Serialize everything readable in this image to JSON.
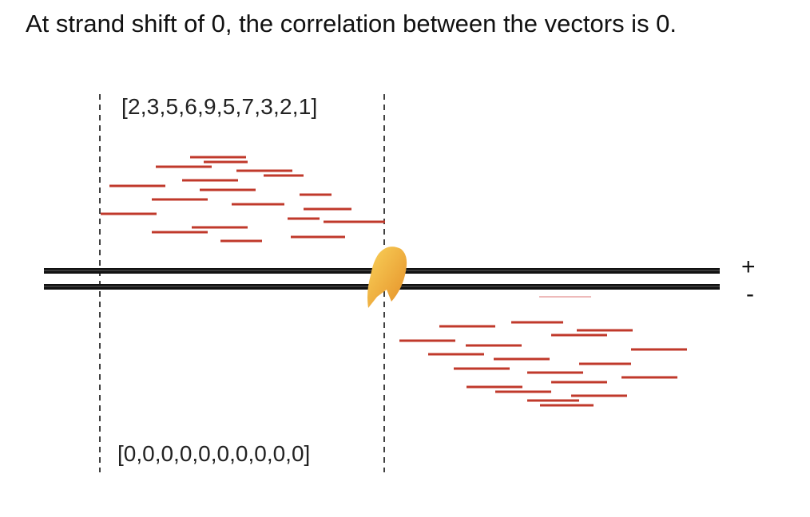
{
  "title": "At strand shift of 0, the correlation between the vectors is 0.",
  "top_vector": "[2,3,5,6,9,5,7,3,2,1]",
  "bottom_vector": "[0,0,0,0,0,0,0,0,0,0]",
  "strand_signs": {
    "plus": "+",
    "minus": "-"
  },
  "colors": {
    "read": "#c0392b",
    "dna": "#111111",
    "protein_light": "#f7c34a",
    "protein_dark": "#e89a2c",
    "guide": "#111111"
  }
}
